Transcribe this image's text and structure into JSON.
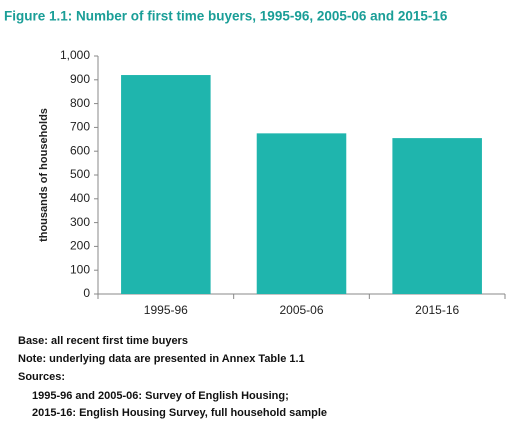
{
  "chart_data": {
    "type": "bar",
    "title": "Figure 1.1: Number of first time buyers, 1995-96, 2005-06 and 2015-16",
    "y_label": "thousands of households",
    "categories": [
      "1995-96",
      "2005-06",
      "2015-16"
    ],
    "values": [
      920,
      675,
      655
    ],
    "color": "#1fb5ad",
    "ylim": [
      0,
      1000
    ],
    "yticks": [
      0,
      100,
      200,
      300,
      400,
      500,
      600,
      700,
      800,
      900,
      {
        "value": 1000,
        "label": "1,000"
      }
    ],
    "grid": false,
    "notes": [
      "Base: all recent first time buyers",
      "Note: underlying data are presented in Annex Table 1.1",
      "Sources:",
      "1995-96 and 2005-06: Survey of English Housing;",
      "2015-16: English Housing Survey, full household sample"
    ]
  }
}
